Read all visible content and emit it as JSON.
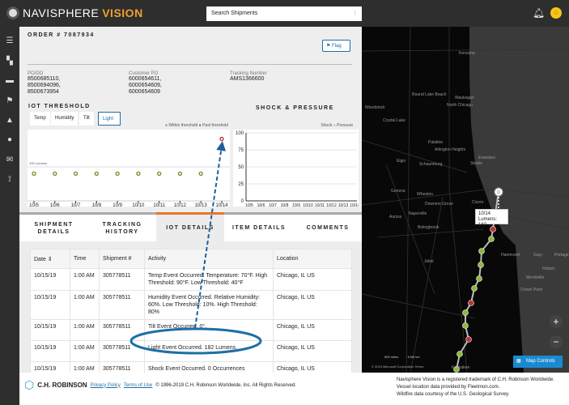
{
  "header": {
    "brand": "NAVISPHERE",
    "brand_accent": "VISION",
    "search_placeholder": "Search Shipments",
    "icons": [
      "bell-icon",
      "user-avatar"
    ]
  },
  "sidebar": {
    "icons": [
      "menu-icon",
      "dashboard-icon",
      "list-icon",
      "flag-icon",
      "alert-icon",
      "user-icon",
      "mail-icon",
      "sensor-icon"
    ]
  },
  "order": {
    "title": "ORDER # 7087934",
    "flag_label": "Flag",
    "po_label": "PO/DO",
    "po_values": [
      "8500685110,",
      "8500694096,",
      "8500673954"
    ],
    "cpo_label": "Customer PO",
    "cpo_values": [
      "6000654611,",
      "6000654609,",
      "6000654609"
    ],
    "tracking_label": "Tracking Number",
    "tracking_value": "AMS1366600"
  },
  "iot": {
    "title": "IOT THRESHOLD",
    "tabs": [
      "Temp",
      "Humidity",
      "Tilt",
      "Light"
    ],
    "active_tab": "Light",
    "legend": [
      "Within threshold",
      "Past threshold"
    ],
    "threshold_label": "100 Lumens"
  },
  "shock": {
    "title": "SHOCK & PRESSURE",
    "legend": [
      "Shock",
      "Pressure"
    ]
  },
  "chart_data": [
    {
      "type": "scatter",
      "categories": [
        "10/5",
        "10/6",
        "10/7",
        "10/8",
        "10/9",
        "10/10",
        "10/11",
        "10/12",
        "10/13",
        "10/14"
      ],
      "values": [
        80,
        80,
        80,
        80,
        80,
        80,
        80,
        80,
        80,
        182
      ],
      "threshold": 100,
      "ylim": [
        0,
        200
      ],
      "colors": {
        "within": "#6b8e23",
        "past": "#b03030"
      }
    },
    {
      "type": "line",
      "categories": [
        "10/5",
        "10/6",
        "10/7",
        "10/8",
        "10/9",
        "10/10",
        "10/11",
        "10/12",
        "10/13",
        "10/14"
      ],
      "yticks": [
        "0",
        "25",
        "50",
        "75",
        "100"
      ],
      "ylim": [
        0,
        100
      ],
      "series": []
    }
  ],
  "tabs": [
    {
      "label": "SHIPMENT DETAILS"
    },
    {
      "label": "TRACKING HISTORY"
    },
    {
      "label": "IOT DETAILS",
      "active": true
    },
    {
      "label": "ITEM DETAILS"
    },
    {
      "label": "COMMENTS"
    }
  ],
  "table": {
    "headers": [
      "Date ⇕",
      "Time",
      "Shipment #",
      "Activity",
      "Location"
    ],
    "rows": [
      [
        "10/15/19",
        "1:00 AM",
        "305778511",
        "Temp Event Occurred. Temperature: 70°F. High Threshold: 90°F. Low Threshold: 40°F",
        "Chicago, IL US"
      ],
      [
        "10/15/19",
        "1:00 AM",
        "305778511",
        "Humidity Event Occurred. Relative Humidity: 60%. Low Threshold: 10%. High Threshold: 80%",
        "Chicago, IL US"
      ],
      [
        "10/15/19",
        "1:00 AM",
        "305778511",
        "Tilt Event Occurred. 0°.",
        "Chicago, IL US"
      ],
      [
        "10/15/19",
        "1:00 AM",
        "305778511",
        "Light Event Occurred. 182 Lumens.",
        "Chicago, IL US"
      ],
      [
        "10/15/19",
        "1:00 AM",
        "305778511",
        "Shock Event Occurred. 0 Occurrences",
        "Chicago, IL US"
      ]
    ]
  },
  "map": {
    "tooltip_date": "10/14",
    "tooltip_value": "Lumens: 182",
    "origin_marker": "D",
    "places": [
      "Kenosha",
      "Round Lake Beach",
      "Waukegan",
      "North Chicago",
      "Woodstock",
      "Crystal Lake",
      "Palatine",
      "Arlington Heights",
      "Evanston",
      "Elgin",
      "Schaumburg",
      "Skokie",
      "Geneva",
      "Wheaton",
      "Downers Grove",
      "Cicero",
      "Aurora",
      "Naperville",
      "Bolingbrook",
      "Hammond",
      "Gary",
      "Portage",
      "Joliet",
      "Hobart",
      "Merrillville",
      "Crown Point",
      "Kankakee"
    ],
    "scale_miles": "500 miles",
    "scale_km": "1000 km",
    "copyright": "© 2019 Microsoft Corporation  Terms",
    "map_controls_label": "Map Controls",
    "zoom_in": "+",
    "zoom_out": "−",
    "route_status": [
      "past",
      "within",
      "within",
      "within",
      "within",
      "within",
      "past",
      "within",
      "within",
      "past",
      "within",
      "within"
    ]
  },
  "footer": {
    "company": "C.H. ROBINSON",
    "privacy": "Privacy Policy",
    "terms": "Terms of Use",
    "copyright": "© 1996-2019 C.H. Robinson Worldwide, Inc. All Rights Reserved.",
    "notes": [
      "Navisphere Vision is a registered trademark of C.H. Robinson Worldwide.",
      "Vessel location data provided by Fleetmon.com.",
      "Wildfire data courtesy of the U.S. Geological Survey."
    ]
  }
}
